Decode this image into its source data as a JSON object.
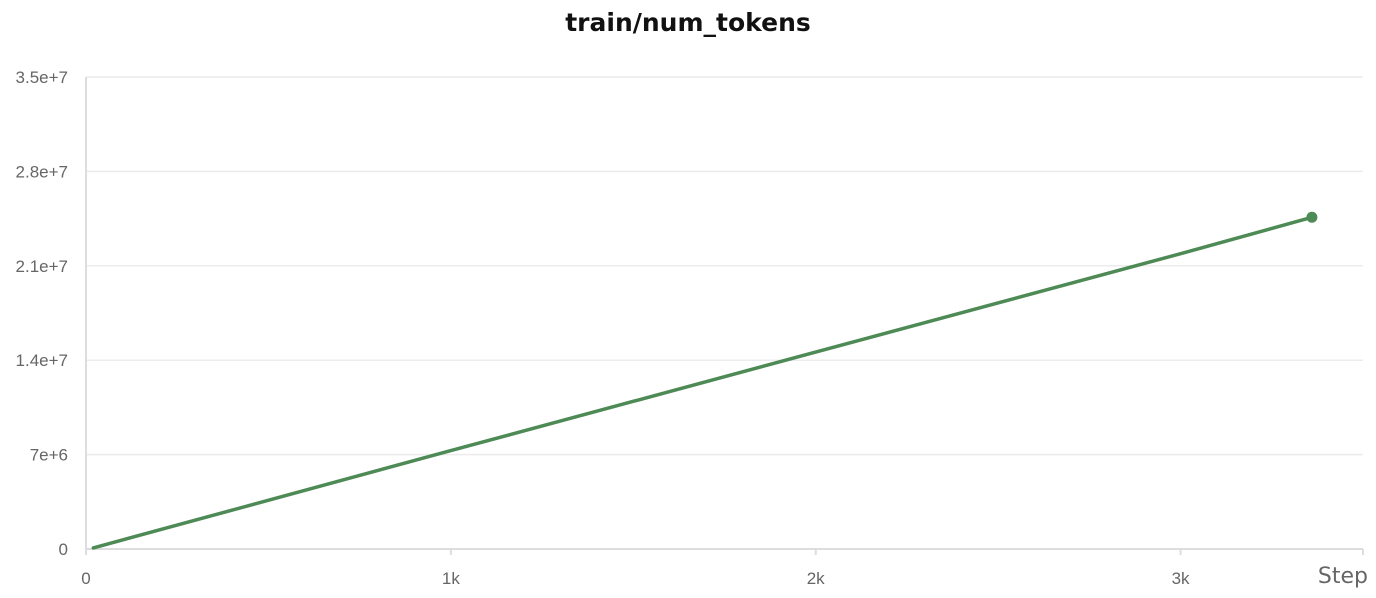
{
  "chart_data": {
    "type": "line",
    "title": "train/num_tokens",
    "xlabel": "Step",
    "ylabel": "",
    "xlim": [
      0,
      3500
    ],
    "ylim": [
      0,
      35000000
    ],
    "x_ticks": [
      {
        "value": 0,
        "label": "0"
      },
      {
        "value": 1000,
        "label": "1k"
      },
      {
        "value": 2000,
        "label": "2k"
      },
      {
        "value": 3000,
        "label": "3k"
      }
    ],
    "y_ticks": [
      {
        "value": 0,
        "label": "0"
      },
      {
        "value": 7000000,
        "label": "7e+6"
      },
      {
        "value": 14000000,
        "label": "1.4e+7"
      },
      {
        "value": 21000000,
        "label": "2.1e+7"
      },
      {
        "value": 28000000,
        "label": "2.8e+7"
      },
      {
        "value": 35000000,
        "label": "3.5e+7"
      }
    ],
    "grid": true,
    "series": [
      {
        "color": "#4e8a55",
        "x": [
          20,
          1000,
          2000,
          3000,
          3360
        ],
        "y": [
          80000,
          7300000,
          14600000,
          21900000,
          24600000
        ],
        "end_marker": true
      }
    ]
  }
}
